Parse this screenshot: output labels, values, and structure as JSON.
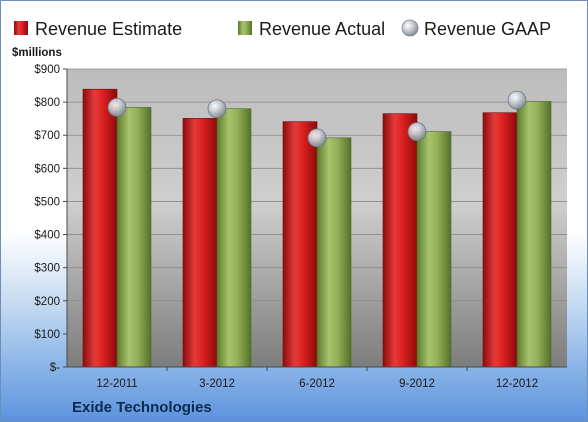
{
  "chart_data": {
    "type": "bar",
    "categories": [
      "12-2011",
      "3-2012",
      "6-2012",
      "9-2012",
      "12-2012"
    ],
    "series": [
      {
        "name": "Revenue Estimate",
        "values": [
          839,
          751,
          741,
          765,
          768
        ],
        "color": "#d81b1b"
      },
      {
        "name": "Revenue Actual",
        "values": [
          784,
          780,
          692,
          711,
          802
        ],
        "color": "#8fae55"
      },
      {
        "name": "Revenue GAAP",
        "values": [
          784,
          780,
          692,
          711,
          806
        ],
        "color": "#b8bfc8",
        "style": "marker"
      }
    ],
    "ylabel": "$millions",
    "y_ticks": [
      "$-",
      "$100",
      "$200",
      "$300",
      "$400",
      "$500",
      "$600",
      "$700",
      "$800",
      "$900"
    ],
    "ylim": [
      0,
      900
    ],
    "grid": true,
    "legend_position": "top",
    "company": "Exide Technologies"
  }
}
